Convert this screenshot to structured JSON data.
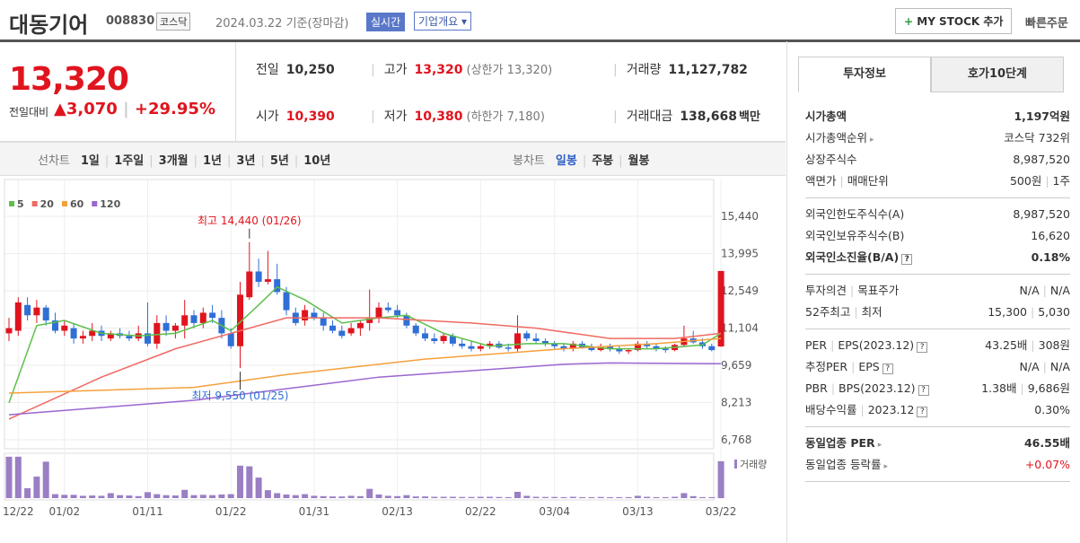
{
  "header": {
    "title": "대동기어",
    "code": "008830",
    "market": "코스닥",
    "date": "2024.03.22 기준(장마감)",
    "realtime": "실시간",
    "overview": "기업개요",
    "mystock": "MY STOCK 추가",
    "quick_order": "빠른주문"
  },
  "price": {
    "current": "13,320",
    "change_label": "전일대비",
    "change": "3,070",
    "change_pct": "+29.95%"
  },
  "summary": [
    [
      {
        "label": "전일",
        "value": "10,250"
      },
      {
        "label": "고가",
        "value": "13,320",
        "extra": "(상한가 13,320)",
        "red": true
      },
      {
        "label": "거래량",
        "value": "11,127,782"
      }
    ],
    [
      {
        "label": "시가",
        "value": "10,390",
        "red": true
      },
      {
        "label": "저가",
        "value": "10,380",
        "extra": "(하한가 7,180)",
        "red": true
      },
      {
        "label": "거래대금",
        "value": "138,668",
        "unit": "백만"
      }
    ]
  ],
  "toolbar": {
    "line_label": "선차트",
    "line_periods": [
      "1일",
      "1주일",
      "3개월",
      "1년",
      "3년",
      "5년",
      "10년"
    ],
    "candle_label": "봉차트",
    "candle_periods": [
      "일봉",
      "주봉",
      "월봉"
    ]
  },
  "chart": {
    "type": "candlestick",
    "up_color": "#e0141e",
    "down_color": "#2f6fd6",
    "ylim": [
      6420,
      16870
    ],
    "yticks": [
      {
        "value": 15440,
        "label": "15,440"
      },
      {
        "value": 13995,
        "label": "13,995"
      },
      {
        "value": 12549,
        "label": "12,549"
      },
      {
        "value": 11104,
        "label": "11,104"
      },
      {
        "value": 9659,
        "label": "9,659"
      },
      {
        "value": 8213,
        "label": "8,213"
      },
      {
        "value": 6768,
        "label": "6,768"
      }
    ],
    "x_labels": [
      {
        "index": 1,
        "label": "12/22"
      },
      {
        "index": 6,
        "label": "01/02"
      },
      {
        "index": 15,
        "label": "01/11"
      },
      {
        "index": 24,
        "label": "01/22"
      },
      {
        "index": 33,
        "label": "01/31"
      },
      {
        "index": 42,
        "label": "02/13"
      },
      {
        "index": 51,
        "label": "02/22"
      },
      {
        "index": 59,
        "label": "03/04"
      },
      {
        "index": 68,
        "label": "03/13"
      },
      {
        "index": 77,
        "label": "03/22"
      }
    ],
    "candles": [
      [
        10900,
        11500,
        10600,
        11100
      ],
      [
        11000,
        12300,
        10800,
        12100
      ],
      [
        12000,
        12300,
        11400,
        11600
      ],
      [
        11600,
        12200,
        11300,
        11900
      ],
      [
        11900,
        12000,
        11200,
        11400
      ],
      [
        11400,
        11700,
        10900,
        11000
      ],
      [
        11000,
        11400,
        10800,
        11200
      ],
      [
        11100,
        11300,
        10500,
        10700
      ],
      [
        10700,
        11000,
        10500,
        10800
      ],
      [
        10800,
        11300,
        10600,
        11000
      ],
      [
        11000,
        11200,
        10600,
        10800
      ],
      [
        10700,
        11000,
        10600,
        10900
      ],
      [
        10900,
        11100,
        10700,
        10800
      ],
      [
        10800,
        11000,
        10600,
        10700
      ],
      [
        10700,
        11200,
        10600,
        10900
      ],
      [
        10900,
        12100,
        10400,
        10500
      ],
      [
        10500,
        11600,
        10300,
        11300
      ],
      [
        11300,
        11600,
        10800,
        11000
      ],
      [
        11000,
        11300,
        10700,
        11200
      ],
      [
        11200,
        12200,
        10700,
        11600
      ],
      [
        11600,
        11800,
        11100,
        11300
      ],
      [
        11300,
        11900,
        11100,
        11700
      ],
      [
        11700,
        12000,
        11300,
        11500
      ],
      [
        11500,
        11800,
        10700,
        10900
      ],
      [
        10900,
        11100,
        10300,
        10400
      ],
      [
        10400,
        12900,
        9550,
        12400
      ],
      [
        12300,
        14440,
        12200,
        13300
      ],
      [
        13300,
        13800,
        12700,
        12900
      ],
      [
        12900,
        14100,
        12800,
        13000
      ],
      [
        13000,
        13600,
        12400,
        12500
      ],
      [
        12500,
        12700,
        11600,
        11800
      ],
      [
        11700,
        11900,
        11200,
        11300
      ],
      [
        11400,
        12000,
        11200,
        11800
      ],
      [
        11700,
        11900,
        11400,
        11500
      ],
      [
        11500,
        11700,
        11000,
        11200
      ],
      [
        11200,
        11400,
        10900,
        11000
      ],
      [
        11000,
        11200,
        10700,
        10800
      ],
      [
        10900,
        11300,
        10800,
        11100
      ],
      [
        11100,
        11400,
        10800,
        11300
      ],
      [
        11300,
        12600,
        11000,
        11500
      ],
      [
        11500,
        12100,
        11300,
        11900
      ],
      [
        11900,
        12100,
        11700,
        11800
      ],
      [
        11800,
        12000,
        11500,
        11600
      ],
      [
        11600,
        11700,
        11100,
        11200
      ],
      [
        11200,
        11300,
        10800,
        10900
      ],
      [
        10900,
        11100,
        10600,
        10700
      ],
      [
        10700,
        10900,
        10500,
        10600
      ],
      [
        10600,
        10900,
        10500,
        10800
      ],
      [
        10800,
        10900,
        10400,
        10500
      ],
      [
        10500,
        10700,
        10300,
        10400
      ],
      [
        10400,
        10600,
        10200,
        10300
      ],
      [
        10300,
        10500,
        10200,
        10400
      ],
      [
        10400,
        10600,
        10300,
        10500
      ],
      [
        10500,
        10600,
        10300,
        10350
      ],
      [
        10350,
        10500,
        10200,
        10300
      ],
      [
        10300,
        11600,
        10200,
        10900
      ],
      [
        10900,
        11000,
        10600,
        10700
      ],
      [
        10700,
        10900,
        10500,
        10600
      ],
      [
        10600,
        10700,
        10400,
        10500
      ],
      [
        10500,
        10600,
        10300,
        10400
      ],
      [
        10400,
        10500,
        10200,
        10300
      ],
      [
        10300,
        10600,
        10200,
        10500
      ],
      [
        10500,
        10600,
        10300,
        10350
      ],
      [
        10350,
        10500,
        10200,
        10250
      ],
      [
        10250,
        10500,
        10200,
        10400
      ],
      [
        10400,
        10500,
        10200,
        10300
      ],
      [
        10300,
        10400,
        10100,
        10200
      ],
      [
        10200,
        10300,
        10100,
        10250
      ],
      [
        10250,
        10600,
        10200,
        10500
      ],
      [
        10500,
        10600,
        10300,
        10400
      ],
      [
        10400,
        10500,
        10200,
        10300
      ],
      [
        10300,
        10400,
        10150,
        10250
      ],
      [
        10250,
        10500,
        10200,
        10450
      ],
      [
        10450,
        11200,
        10400,
        10700
      ],
      [
        10700,
        11000,
        10500,
        10550
      ],
      [
        10550,
        10700,
        10300,
        10400
      ],
      [
        10400,
        10500,
        10200,
        10250
      ],
      [
        10390,
        13320,
        10380,
        13320
      ]
    ],
    "volume_label": "거래량",
    "volume_color": "#9a7fc4",
    "volume_lim": [
      0,
      13000000
    ],
    "volumes": [
      12500000,
      12500000,
      3000000,
      6500000,
      11000000,
      1200000,
      1000000,
      1000000,
      700000,
      800000,
      700000,
      1500000,
      900000,
      800000,
      600000,
      1800000,
      1200000,
      900000,
      800000,
      2500000,
      900000,
      1000000,
      900000,
      1100000,
      1200000,
      9800000,
      9600000,
      6200000,
      2400000,
      1500000,
      1100000,
      900000,
      1200000,
      700000,
      600000,
      500000,
      500000,
      700000,
      600000,
      2800000,
      1100000,
      700000,
      600000,
      900000,
      500000,
      500000,
      400000,
      400000,
      400000,
      350000,
      350000,
      400000,
      400000,
      350000,
      300000,
      1900000,
      700000,
      400000,
      350000,
      350000,
      300000,
      400000,
      300000,
      300000,
      350000,
      300000,
      300000,
      300000,
      700000,
      400000,
      300000,
      300000,
      400000,
      1500000,
      600000,
      300000,
      300000,
      11127782
    ],
    "series": [
      {
        "name": "5",
        "color": "#5cbf4a",
        "x": [
          0,
          3,
          6,
          10,
          14,
          18,
          22,
          24,
          27,
          29,
          32,
          36,
          40,
          43,
          47,
          52,
          56,
          60,
          65,
          70,
          75,
          77
        ],
        "values": [
          8200,
          11200,
          11400,
          10900,
          10800,
          10900,
          11400,
          11000,
          12000,
          12700,
          12200,
          11300,
          11500,
          11600,
          10900,
          10400,
          10500,
          10500,
          10300,
          10300,
          10450,
          10900
        ]
      },
      {
        "name": "20",
        "color": "#ef6a62",
        "x": [
          0,
          10,
          18,
          25,
          30,
          40,
          50,
          57,
          65,
          72,
          77
        ],
        "values": [
          7570,
          9200,
          10300,
          11000,
          11500,
          11500,
          11300,
          11100,
          10700,
          10700,
          10900
        ]
      },
      {
        "name": "60",
        "color": "#f5a03c",
        "x": [
          0,
          20,
          30,
          45,
          60,
          70,
          77
        ],
        "values": [
          8580,
          8800,
          9300,
          9900,
          10300,
          10500,
          10700
        ]
      },
      {
        "name": "120",
        "color": "#9a66d0",
        "x": [
          0,
          20,
          40,
          60,
          65,
          77
        ],
        "values": [
          7740,
          8300,
          9200,
          9700,
          9750,
          9720
        ]
      }
    ],
    "annotations": [
      {
        "text": "최고 14,440 (01/26)",
        "index": 26,
        "value": 14440,
        "color": "#e0141e"
      },
      {
        "text": "최저 9,550 (01/25)",
        "index": 25,
        "value": 9550,
        "color": "#2f6fd6"
      }
    ]
  },
  "info": {
    "tabs": [
      "투자정보",
      "호가10단계"
    ],
    "sections": [
      [
        {
          "label": [
            "시가총액"
          ],
          "value": [
            "1,197억원"
          ],
          "bold": true
        },
        {
          "label": [
            "시가총액순위"
          ],
          "value": [
            "코스닥 732위"
          ],
          "arrow": true
        },
        {
          "label": [
            "상장주식수"
          ],
          "value": [
            "8,987,520"
          ]
        },
        {
          "label": [
            "액면가",
            "매매단위"
          ],
          "value": [
            "500원",
            "1주"
          ]
        }
      ],
      [
        {
          "label": [
            "외국인한도주식수(A)"
          ],
          "value": [
            "8,987,520"
          ]
        },
        {
          "label": [
            "외국인보유주식수(B)"
          ],
          "value": [
            "16,620"
          ]
        },
        {
          "label": [
            "외국인소진율(B/A)"
          ],
          "value": [
            "0.18%"
          ],
          "bold": true,
          "q": true
        }
      ],
      [
        {
          "label": [
            "투자의견",
            "목표주가"
          ],
          "value": [
            "N/A",
            "N/A"
          ]
        },
        {
          "label": [
            "52주최고",
            "최저"
          ],
          "value": [
            "15,300",
            "5,030"
          ]
        }
      ],
      [
        {
          "label": [
            "PER",
            "EPS(2023.12)"
          ],
          "value": [
            "43.25배",
            "308원"
          ],
          "q": true
        },
        {
          "label": [
            "추정PER",
            "EPS"
          ],
          "value": [
            "N/A",
            "N/A"
          ],
          "q": true
        },
        {
          "label": [
            "PBR",
            "BPS(2023.12)"
          ],
          "value": [
            "1.38배",
            "9,686원"
          ],
          "q": true
        },
        {
          "label": [
            "배당수익률",
            "2023.12"
          ],
          "value": [
            "0.30%"
          ],
          "q": true
        }
      ],
      [
        {
          "label": [
            "동일업종 PER"
          ],
          "value": [
            "46.55배"
          ],
          "bold": true,
          "arrow": true
        },
        {
          "label": [
            "동일업종 등락률"
          ],
          "value": [
            "+0.07%"
          ],
          "arrow": true,
          "red": true
        }
      ]
    ]
  }
}
